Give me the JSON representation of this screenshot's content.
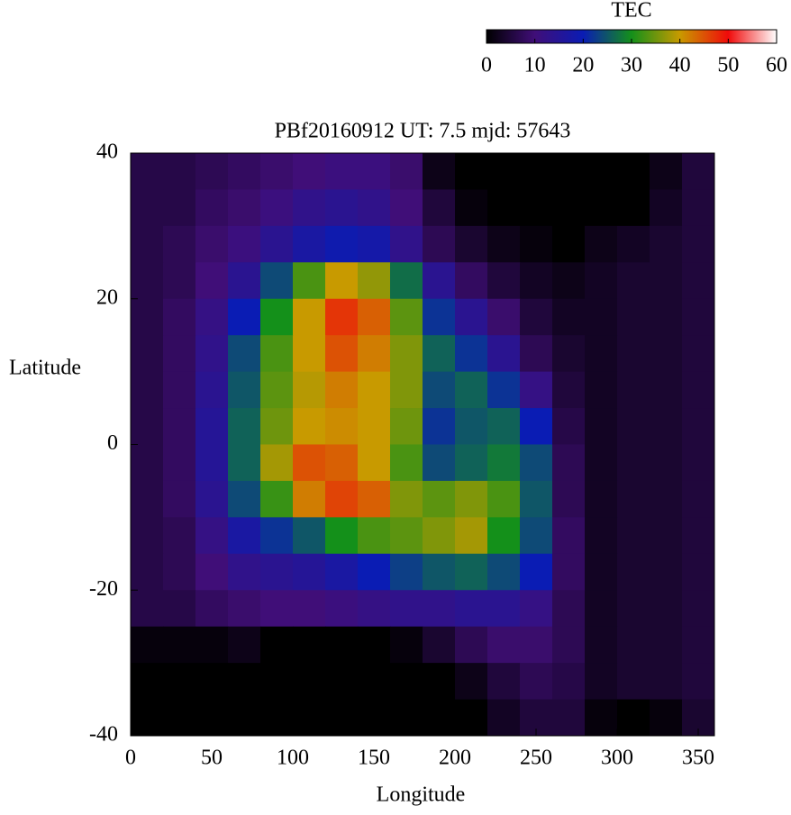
{
  "chart_data": {
    "type": "heatmap",
    "title": "PBf20160912  UT: 7.5  mjd: 57643",
    "x_label": "Longitude",
    "y_label": "Latitude",
    "xlim": [
      0,
      360
    ],
    "ylim": [
      -40,
      40
    ],
    "xticks": [
      0,
      50,
      100,
      150,
      200,
      250,
      300,
      350
    ],
    "yticks": [
      -40,
      -20,
      0,
      20,
      40
    ],
    "x_edges": [
      0,
      20,
      40,
      60,
      80,
      100,
      120,
      140,
      160,
      180,
      200,
      220,
      240,
      260,
      280,
      300,
      320,
      340,
      360
    ],
    "y_edges": [
      40,
      35,
      30,
      25,
      20,
      15,
      10,
      5,
      0,
      -5,
      -10,
      -15,
      -20,
      -25,
      -30,
      -35,
      -40
    ],
    "values": [
      [
        6,
        6,
        7,
        8,
        9,
        10,
        11,
        11,
        9,
        2,
        0,
        0,
        0,
        0,
        0,
        0,
        2,
        5
      ],
      [
        6,
        6,
        8,
        9,
        11,
        13,
        14,
        13,
        10,
        5,
        1,
        0,
        0,
        0,
        0,
        0,
        3,
        5
      ],
      [
        6,
        7,
        9,
        11,
        14,
        17,
        19,
        18,
        13,
        7,
        4,
        2,
        1,
        0,
        2,
        3,
        4,
        5
      ],
      [
        6,
        7,
        10,
        14,
        24,
        33,
        40,
        37,
        27,
        14,
        8,
        5,
        3,
        2,
        3,
        4,
        4,
        5
      ],
      [
        6,
        8,
        12,
        20,
        30,
        40,
        47,
        44,
        34,
        22,
        14,
        9,
        5,
        3,
        3,
        4,
        4,
        5
      ],
      [
        6,
        8,
        13,
        24,
        33,
        40,
        45,
        42,
        36,
        26,
        22,
        14,
        7,
        4,
        3,
        4,
        4,
        5
      ],
      [
        6,
        8,
        14,
        25,
        34,
        39,
        42,
        40,
        36,
        24,
        26,
        22,
        12,
        5,
        3,
        4,
        4,
        5
      ],
      [
        6,
        8,
        15,
        26,
        35,
        40,
        41,
        40,
        35,
        22,
        25,
        26,
        20,
        6,
        3,
        4,
        4,
        5
      ],
      [
        6,
        8,
        15,
        26,
        38,
        45,
        44,
        40,
        33,
        24,
        26,
        28,
        24,
        7,
        3,
        4,
        4,
        5
      ],
      [
        6,
        8,
        14,
        24,
        32,
        42,
        46,
        44,
        36,
        34,
        36,
        33,
        25,
        7,
        3,
        4,
        4,
        5
      ],
      [
        6,
        7,
        12,
        17,
        22,
        25,
        30,
        33,
        34,
        36,
        38,
        30,
        24,
        8,
        3,
        4,
        4,
        5
      ],
      [
        6,
        7,
        10,
        13,
        14,
        15,
        17,
        20,
        23,
        25,
        26,
        24,
        20,
        8,
        3,
        4,
        4,
        5
      ],
      [
        6,
        6,
        8,
        9,
        10,
        10,
        11,
        12,
        13,
        13,
        14,
        14,
        12,
        7,
        3,
        4,
        4,
        5
      ],
      [
        1,
        1,
        1,
        2,
        0,
        0,
        0,
        0,
        1,
        4,
        7,
        9,
        9,
        7,
        3,
        4,
        4,
        5
      ],
      [
        0,
        0,
        0,
        0,
        0,
        0,
        0,
        0,
        0,
        0,
        2,
        5,
        7,
        6,
        3,
        4,
        4,
        5
      ],
      [
        0,
        0,
        0,
        0,
        0,
        0,
        0,
        0,
        0,
        0,
        0,
        3,
        5,
        5,
        1,
        0,
        1,
        4
      ]
    ],
    "colorbar": {
      "label": "TEC",
      "lim": [
        0,
        60
      ],
      "ticks": [
        0,
        10,
        20,
        30,
        40,
        50,
        60
      ]
    },
    "colormap": [
      "#000000",
      "#400e78",
      "#0a1cb4",
      "#14901a",
      "#c89a00",
      "#f00a0a",
      "#ffffff"
    ]
  }
}
